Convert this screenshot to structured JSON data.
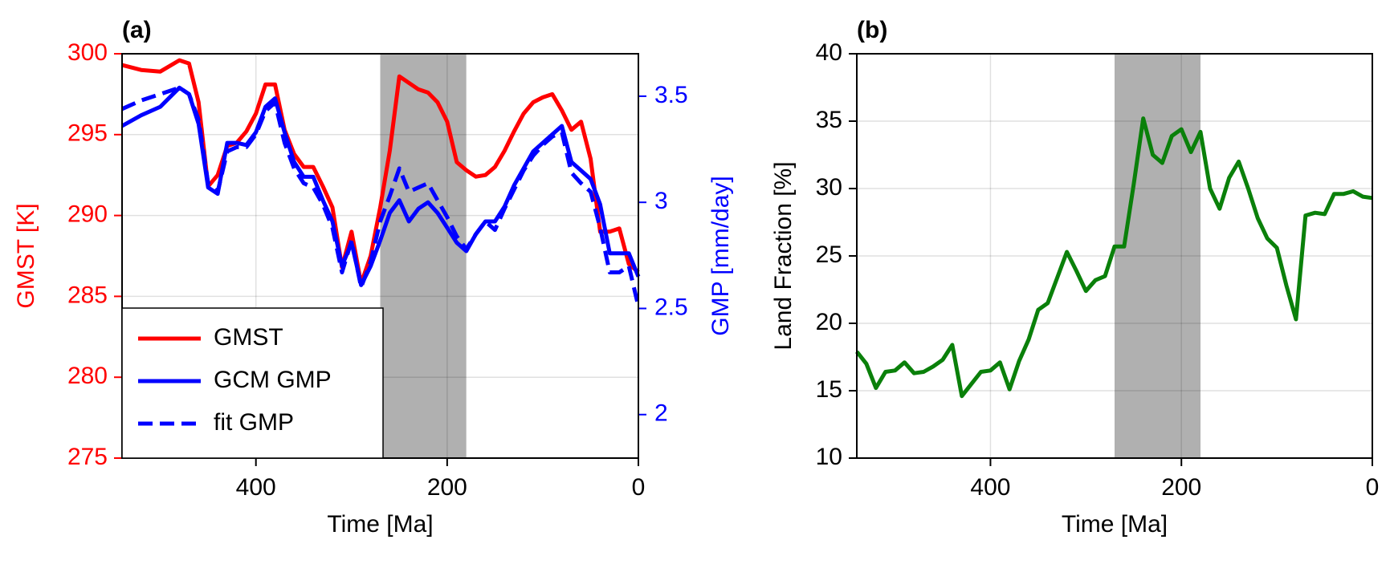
{
  "chart_data": [
    {
      "type": "line",
      "title": "(a)",
      "xlabel": "Time [Ma]",
      "ylabel": "GMST [K]",
      "y2label": "GMP [mm/day]",
      "ycolor": "#ff0000",
      "y2color": "#0000ff",
      "x": [
        540,
        520,
        500,
        480,
        470,
        460,
        450,
        440,
        430,
        420,
        410,
        400,
        390,
        380,
        370,
        360,
        350,
        340,
        330,
        320,
        310,
        300,
        290,
        280,
        270,
        260,
        250,
        240,
        230,
        220,
        210,
        200,
        190,
        180,
        170,
        160,
        150,
        140,
        130,
        120,
        110,
        100,
        90,
        80,
        70,
        60,
        50,
        40,
        30,
        20,
        10,
        0
      ],
      "series": [
        {
          "name": "GMST",
          "color": "#ff0000",
          "linestyle": "solid",
          "values": [
            299.3,
            299.0,
            298.9,
            299.6,
            299.4,
            297.0,
            291.8,
            292.5,
            294.3,
            294.5,
            295.2,
            296.3,
            298.1,
            298.1,
            295.3,
            293.8,
            293.0,
            293.0,
            291.8,
            290.5,
            286.8,
            289.0,
            285.8,
            287.5,
            290.5,
            294.0,
            298.6,
            298.2,
            297.8,
            297.6,
            297.0,
            295.8,
            293.3,
            292.8,
            292.4,
            292.5,
            293.0,
            294.0,
            295.2,
            296.3,
            297.0,
            297.3,
            297.5,
            296.5,
            295.3,
            295.8,
            293.5,
            289.0,
            289.0,
            289.2,
            287.0,
            286.5
          ]
        },
        {
          "name": "GCM GMP",
          "color": "#0000ff",
          "linestyle": "solid",
          "axis": "y2",
          "values": [
            3.36,
            3.41,
            3.45,
            3.54,
            3.51,
            3.37,
            3.07,
            3.04,
            3.28,
            3.28,
            3.27,
            3.33,
            3.45,
            3.49,
            3.33,
            3.19,
            3.12,
            3.12,
            3.01,
            2.91,
            2.7,
            2.81,
            2.61,
            2.7,
            2.82,
            2.95,
            3.01,
            2.91,
            2.97,
            3.0,
            2.95,
            2.88,
            2.81,
            2.77,
            2.85,
            2.91,
            2.91,
            2.98,
            3.08,
            3.16,
            3.24,
            3.28,
            3.32,
            3.36,
            3.19,
            3.15,
            3.11,
            2.99,
            2.76,
            2.76,
            2.76,
            2.65
          ]
        },
        {
          "name": "fit GMP",
          "color": "#0000ff",
          "linestyle": "dashed",
          "axis": "y2",
          "values": [
            3.44,
            3.48,
            3.51,
            3.54,
            3.51,
            3.39,
            3.09,
            3.05,
            3.24,
            3.26,
            3.26,
            3.32,
            3.43,
            3.47,
            3.28,
            3.16,
            3.09,
            3.07,
            2.99,
            2.88,
            2.67,
            2.82,
            2.6,
            2.72,
            2.91,
            3.03,
            3.16,
            3.05,
            3.07,
            3.09,
            3.01,
            2.93,
            2.84,
            2.78,
            2.85,
            2.91,
            2.87,
            2.97,
            3.06,
            3.15,
            3.22,
            3.27,
            3.31,
            3.33,
            3.14,
            3.09,
            3.05,
            2.88,
            2.67,
            2.67,
            2.7,
            2.51
          ]
        }
      ],
      "xlim": [
        540,
        0
      ],
      "xticks": [
        400,
        200,
        0
      ],
      "ylim": [
        275,
        300
      ],
      "yticks": [
        275,
        280,
        285,
        290,
        295,
        300
      ],
      "y2lim": [
        1.795,
        3.7
      ],
      "y2ticks": [
        2,
        2.5,
        3,
        3.5
      ],
      "shade": [
        270,
        180
      ],
      "grid": true,
      "legend": "lower left"
    },
    {
      "type": "line",
      "title": "(b)",
      "xlabel": "Time [Ma]",
      "ylabel": "Land Fraction [%]",
      "x": [
        540,
        530,
        520,
        510,
        500,
        490,
        480,
        470,
        460,
        450,
        440,
        430,
        420,
        410,
        400,
        390,
        380,
        370,
        360,
        350,
        340,
        330,
        320,
        310,
        300,
        290,
        280,
        270,
        260,
        250,
        240,
        230,
        220,
        210,
        200,
        190,
        180,
        170,
        160,
        150,
        140,
        130,
        120,
        110,
        100,
        90,
        80,
        70,
        60,
        50,
        40,
        30,
        20,
        10,
        0
      ],
      "color": "#0a800a",
      "values": [
        17.9,
        17.0,
        15.2,
        16.4,
        16.5,
        17.1,
        16.3,
        16.4,
        16.8,
        17.3,
        18.4,
        14.6,
        15.5,
        16.4,
        16.5,
        17.1,
        15.1,
        17.2,
        18.8,
        21.0,
        21.5,
        23.4,
        25.3,
        23.9,
        22.4,
        23.2,
        23.5,
        25.7,
        25.7,
        30.3,
        35.2,
        32.5,
        31.9,
        33.9,
        34.4,
        32.7,
        34.2,
        30.0,
        28.5,
        30.8,
        32.0,
        30.0,
        27.8,
        26.3,
        25.6,
        22.8,
        20.3,
        28.0,
        28.2,
        28.1,
        29.6,
        29.6,
        29.8,
        29.4,
        29.3
      ],
      "xlim": [
        540,
        0
      ],
      "xticks": [
        400,
        200,
        0
      ],
      "ylim": [
        10,
        40
      ],
      "yticks": [
        10,
        15,
        20,
        25,
        30,
        35,
        40
      ],
      "shade": [
        270,
        180
      ],
      "grid": true
    }
  ]
}
